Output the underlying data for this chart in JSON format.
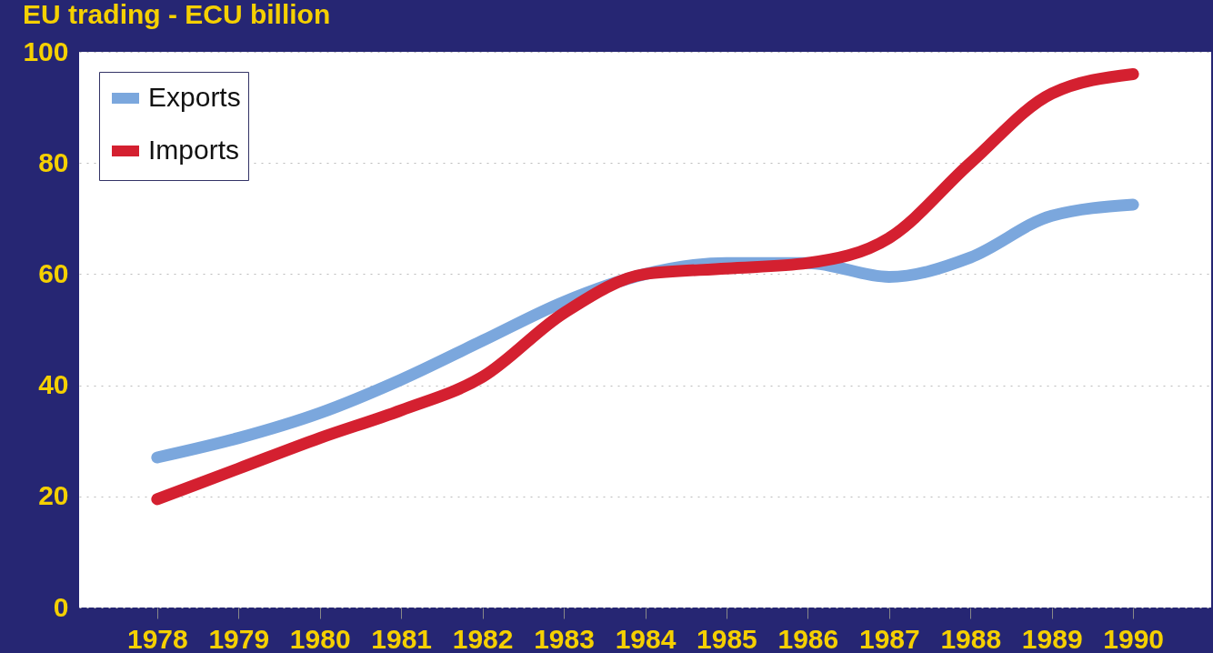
{
  "chart_data": {
    "type": "line",
    "title": "EU trading - ECU billion",
    "categories": [
      "1978",
      "1979",
      "1980",
      "1981",
      "1982",
      "1983",
      "1984",
      "1985",
      "1986",
      "1987",
      "1988",
      "1989",
      "1990"
    ],
    "series": [
      {
        "name": "Exports",
        "color": "#7ba7dd",
        "values": [
          27,
          30.5,
          35,
          41,
          48,
          55,
          60,
          62,
          62,
          59.5,
          63,
          70.5,
          72.5
        ]
      },
      {
        "name": "Imports",
        "color": "#d42030",
        "values": [
          19.5,
          25,
          30.5,
          35.5,
          41.5,
          53,
          60,
          61,
          62,
          66.5,
          80,
          92.5,
          96
        ]
      }
    ],
    "ylim": [
      0,
      100
    ],
    "yticks": [
      0,
      20,
      40,
      60,
      80,
      100
    ],
    "grid": "y",
    "legend": "top left",
    "line_style": "solid"
  }
}
